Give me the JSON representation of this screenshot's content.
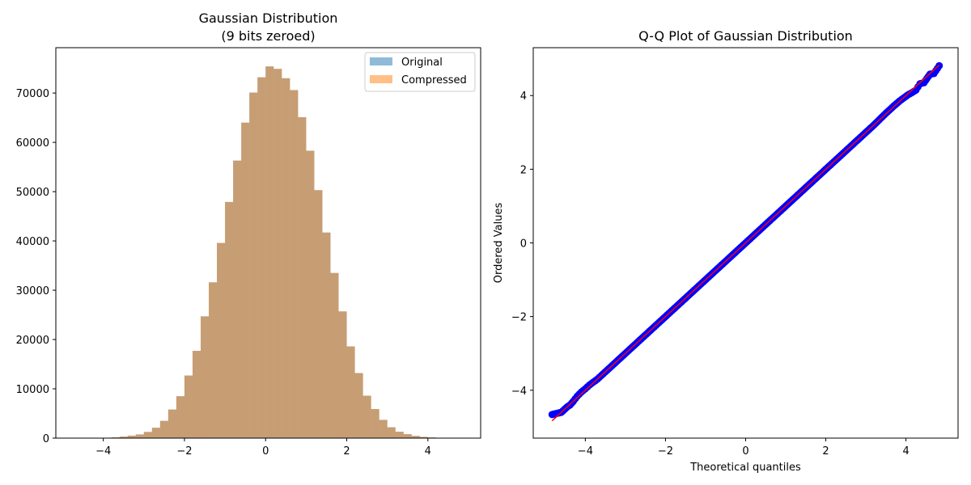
{
  "colors": {
    "original": "#1f77b4",
    "compressed": "#ff7f0e",
    "qq_points": "#0000ff",
    "qq_line": "#ff0000",
    "axes": "#000000",
    "background": "#ffffff"
  },
  "chart_data": [
    {
      "type": "bar",
      "subtype": "histogram",
      "title": "Gaussian Distribution",
      "subtitle": "(9 bits zeroed)",
      "xlabel": "",
      "ylabel": "",
      "xlim": [
        -5.17,
        5.3
      ],
      "ylim": [
        0,
        79200
      ],
      "xticks": [
        -4,
        -2,
        0,
        2,
        4
      ],
      "xtick_labels": [
        "−4",
        "−2",
        "0",
        "2",
        "4"
      ],
      "yticks": [
        0,
        10000,
        20000,
        30000,
        40000,
        50000,
        60000,
        70000
      ],
      "ytick_labels": [
        "0",
        "10000",
        "20000",
        "30000",
        "40000",
        "50000",
        "60000",
        "70000"
      ],
      "legend": {
        "position": "top-right",
        "entries": [
          "Original",
          "Compressed"
        ]
      },
      "bin_start": -4.8,
      "bin_width": 0.2,
      "counts": [
        5,
        10,
        20,
        40,
        80,
        150,
        300,
        500,
        750,
        1250,
        2100,
        3500,
        5800,
        8500,
        12700,
        17700,
        24700,
        31600,
        39600,
        47900,
        56300,
        64000,
        70100,
        73200,
        75400,
        74900,
        73000,
        70600,
        65100,
        58300,
        50300,
        41700,
        33500,
        25700,
        18600,
        13200,
        8600,
        5900,
        3700,
        2200,
        1300,
        800,
        450,
        250,
        130,
        60,
        30,
        15
      ],
      "series": [
        {
          "name": "Original",
          "alpha": 0.5
        },
        {
          "name": "Compressed",
          "alpha": 0.5
        }
      ]
    },
    {
      "type": "scatter",
      "title": "Q-Q Plot of Gaussian Distribution",
      "xlabel": "Theoretical quantiles",
      "ylabel": "Ordered Values",
      "xlim": [
        -5.3,
        5.3
      ],
      "ylim": [
        -5.3,
        5.3
      ],
      "xticks": [
        -4,
        -2,
        0,
        2,
        4
      ],
      "xtick_labels": [
        "−4",
        "−2",
        "0",
        "2",
        "4"
      ],
      "yticks": [
        -4,
        -2,
        0,
        2,
        4
      ],
      "ytick_labels": [
        "−4",
        "−2",
        "0",
        "2",
        "4"
      ],
      "fit_line": {
        "x": [
          -4.83,
          4.83
        ],
        "y": [
          -4.83,
          4.83
        ]
      },
      "points": {
        "x": [
          -4.83,
          -4.6,
          -4.45,
          -4.38,
          -4.3,
          -4.2,
          -4.1,
          -4.0,
          -3.9,
          -3.8,
          -3.7,
          -3.6,
          -3.5,
          -3.2,
          -2.8,
          -2.4,
          -2.0,
          -1.6,
          -1.2,
          -0.8,
          -0.4,
          0.0,
          0.4,
          0.8,
          1.2,
          1.6,
          2.0,
          2.4,
          2.8,
          3.2,
          3.5,
          3.7,
          3.85,
          3.95,
          4.05,
          4.15,
          4.25,
          4.35,
          4.45,
          4.6,
          4.7,
          4.83
        ],
        "y": [
          -4.66,
          -4.6,
          -4.45,
          -4.4,
          -4.3,
          -4.16,
          -4.05,
          -3.96,
          -3.86,
          -3.78,
          -3.7,
          -3.6,
          -3.5,
          -3.2,
          -2.8,
          -2.4,
          -2.0,
          -1.6,
          -1.2,
          -0.8,
          -0.4,
          0.0,
          0.4,
          0.8,
          1.2,
          1.6,
          2.0,
          2.4,
          2.8,
          3.2,
          3.52,
          3.72,
          3.86,
          3.94,
          4.02,
          4.08,
          4.15,
          4.32,
          4.35,
          4.58,
          4.6,
          4.81
        ]
      }
    }
  ]
}
